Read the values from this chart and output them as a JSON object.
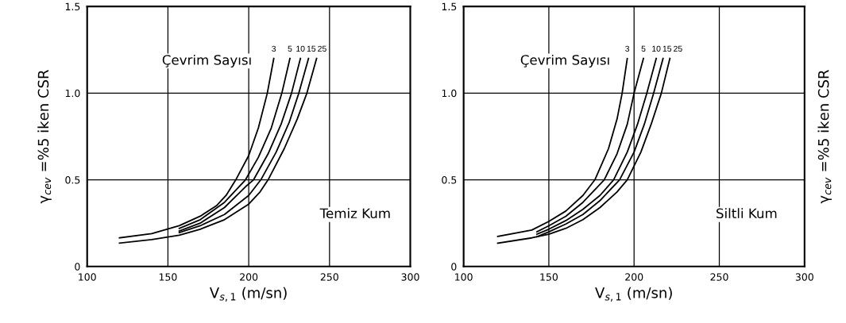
{
  "chart_data": [
    {
      "type": "line",
      "xlabel": "V$_{s,1}$ (m/sn)",
      "ylabel": "γ$_{cev}$ =%5 iken CSR",
      "annotations": [
        "Çevrim Sayısı",
        "Temiz Kum"
      ],
      "xlim": [
        100,
        300
      ],
      "xticks": [
        100,
        150,
        200,
        250,
        300
      ],
      "ylim": [
        0,
        1.5
      ],
      "yticks": [
        0,
        {
          "value": 0.5,
          "label": "0.5"
        },
        {
          "value": 1,
          "label": "1.0"
        },
        {
          "value": 1.5,
          "label": "1.5"
        }
      ],
      "grid": true,
      "legend": false,
      "series": [
        {
          "name": "3",
          "color": "#000000",
          "x": [
            120,
            140,
            157,
            170,
            180,
            186,
            192,
            200,
            206,
            211.5,
            215.5
          ],
          "values": [
            0.165,
            0.19,
            0.235,
            0.29,
            0.35,
            0.41,
            0.5,
            0.64,
            0.8,
            1.0,
            1.2
          ]
        },
        {
          "name": "5",
          "color": "#000000",
          "x": [
            157,
            170,
            185,
            198,
            206,
            214,
            220.5,
            225.5
          ],
          "values": [
            0.22,
            0.27,
            0.37,
            0.5,
            0.63,
            0.8,
            1.0,
            1.2
          ]
        },
        {
          "name": "10",
          "color": "#000000",
          "x": [
            157,
            170,
            185,
            198,
            203,
            212,
            220,
            226.5,
            232
          ],
          "values": [
            0.205,
            0.25,
            0.34,
            0.46,
            0.5,
            0.65,
            0.82,
            1.0,
            1.2
          ]
        },
        {
          "name": "15",
          "color": "#000000",
          "x": [
            157,
            170,
            185,
            200,
            207.5,
            217,
            225,
            231,
            237
          ],
          "values": [
            0.195,
            0.235,
            0.3,
            0.41,
            0.5,
            0.66,
            0.83,
            1.0,
            1.2
          ]
        },
        {
          "name": "25",
          "color": "#000000",
          "x": [
            120,
            140,
            157,
            170,
            185,
            200,
            207,
            212,
            222,
            230,
            236,
            242
          ],
          "values": [
            0.135,
            0.155,
            0.18,
            0.215,
            0.27,
            0.36,
            0.43,
            0.5,
            0.68,
            0.85,
            1.0,
            1.2
          ]
        }
      ]
    },
    {
      "type": "line",
      "xlabel": "V$_{s,1}$ (m/sn)",
      "ylabel": "γ$_{cev}$ =%5 iken CSR",
      "annotations": [
        "Çevrim Sayısı",
        "Siltli Kum"
      ],
      "xlim": [
        100,
        300
      ],
      "xticks": [
        100,
        150,
        200,
        250,
        300
      ],
      "ylim": [
        0,
        1.5
      ],
      "yticks": [
        0,
        {
          "value": 0.5,
          "label": "0.5"
        },
        {
          "value": 1,
          "label": "1.0"
        },
        {
          "value": 1.5,
          "label": "1.5"
        }
      ],
      "grid": true,
      "legend": false,
      "series": [
        {
          "name": "3",
          "color": "#000000",
          "x": [
            120,
            140,
            150,
            160,
            170,
            177,
            185,
            190,
            193,
            196
          ],
          "values": [
            0.173,
            0.21,
            0.26,
            0.32,
            0.41,
            0.5,
            0.68,
            0.85,
            1.0,
            1.2
          ]
        },
        {
          "name": "5",
          "color": "#000000",
          "x": [
            143,
            150,
            160,
            170,
            182.5,
            190,
            196,
            200,
            205.5
          ],
          "values": [
            0.2,
            0.235,
            0.29,
            0.37,
            0.5,
            0.65,
            0.82,
            1.0,
            1.2
          ]
        },
        {
          "name": "10",
          "color": "#000000",
          "x": [
            143,
            150,
            160,
            170,
            180,
            188,
            196,
            202,
            207.5,
            213
          ],
          "values": [
            0.186,
            0.215,
            0.265,
            0.33,
            0.41,
            0.5,
            0.66,
            0.82,
            1.0,
            1.2
          ]
        },
        {
          "name": "15",
          "color": "#000000",
          "x": [
            143,
            150,
            160,
            170,
            180,
            191.5,
            200,
            206,
            211.5,
            217
          ],
          "values": [
            0.171,
            0.2,
            0.245,
            0.3,
            0.38,
            0.5,
            0.66,
            0.82,
            1.0,
            1.2
          ]
        },
        {
          "name": "25",
          "color": "#000000",
          "x": [
            120,
            140,
            150,
            160,
            170,
            180,
            190,
            196,
            204,
            210,
            216,
            221
          ],
          "values": [
            0.134,
            0.165,
            0.186,
            0.22,
            0.27,
            0.34,
            0.43,
            0.5,
            0.66,
            0.82,
            1.0,
            1.2
          ]
        }
      ]
    }
  ]
}
